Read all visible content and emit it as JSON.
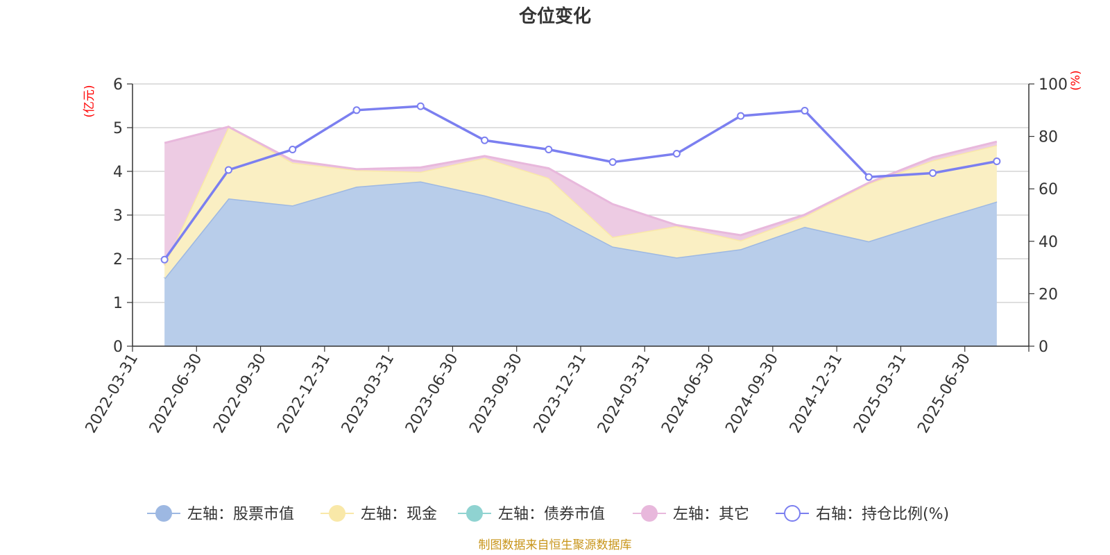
{
  "chart_data": {
    "type": "area",
    "title": "仓位变化",
    "left_axis_unit": "(亿元)",
    "right_axis_unit": "(%)",
    "left_ylim": [
      0,
      6
    ],
    "left_ticks": [
      "0",
      "1",
      "2",
      "3",
      "4",
      "5",
      "6"
    ],
    "right_ylim": [
      0,
      100
    ],
    "right_ticks": [
      "0",
      "20",
      "40",
      "60",
      "80",
      "100"
    ],
    "categories": [
      "2022-03-31",
      "2022-06-30",
      "2022-09-30",
      "2022-12-31",
      "2023-03-31",
      "2023-06-30",
      "2023-09-30",
      "2023-12-31",
      "2024-03-31",
      "2024-06-30",
      "2024-09-30",
      "2024-12-31",
      "2025-03-31",
      "2025-06-30"
    ],
    "series": [
      {
        "name": "左轴：股票市值",
        "axis": "left",
        "kind": "stacked-area",
        "color": "#9db8e2",
        "fill": "#b8cdea",
        "values": [
          1.55,
          3.38,
          3.22,
          3.65,
          3.77,
          3.45,
          3.05,
          2.28,
          2.03,
          2.22,
          2.73,
          2.4,
          2.87,
          3.31
        ]
      },
      {
        "name": "左轴：现金",
        "axis": "left",
        "kind": "stacked-area",
        "color": "#f9e8a8",
        "fill": "#faefc3",
        "values": [
          0.3,
          1.64,
          0.98,
          0.38,
          0.22,
          0.86,
          0.8,
          0.22,
          0.72,
          0.2,
          0.24,
          1.32,
          1.38,
          1.29
        ]
      },
      {
        "name": "左轴：债券市值",
        "axis": "left",
        "kind": "stacked-area",
        "color": "#8fd3d1",
        "fill": "#b6e3e2",
        "values": [
          0,
          0,
          0,
          0,
          0,
          0,
          0,
          0,
          0,
          0,
          0,
          0,
          0,
          0
        ]
      },
      {
        "name": "左轴：其它",
        "axis": "left",
        "kind": "stacked-area",
        "color": "#e8b8dc",
        "fill": "#edcbe3",
        "values": [
          2.8,
          0,
          0.05,
          0.02,
          0.1,
          0.04,
          0.22,
          0.75,
          0.02,
          0.12,
          0.04,
          0.02,
          0.07,
          0.08
        ]
      },
      {
        "name": "右轴：持仓比例(%)",
        "axis": "right",
        "kind": "line",
        "color": "#7b7ff0",
        "values": [
          33.0,
          67.2,
          75.0,
          90.0,
          91.5,
          78.5,
          75.0,
          70.2,
          73.4,
          87.8,
          89.8,
          64.5,
          66.0,
          70.5
        ]
      }
    ],
    "legend_position": "bottom",
    "grid": true
  },
  "footer": {
    "source_text": "制图数据来自恒生聚源数据库",
    "source_color": "#c8951a"
  },
  "colors": {
    "axis_unit": "#ff0000",
    "grid": "#cccccc",
    "axis": "#333333"
  }
}
